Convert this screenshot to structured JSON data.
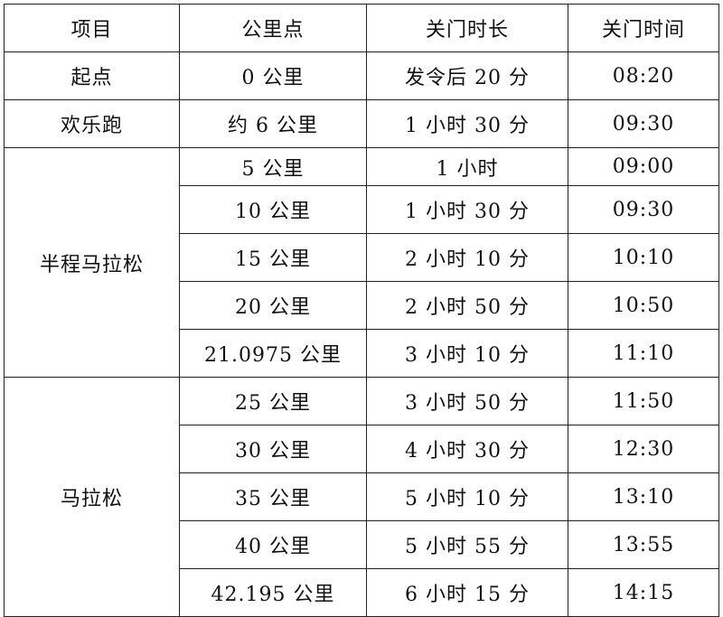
{
  "headers": [
    "项目",
    "公里点",
    "关门时长",
    "关门时间"
  ],
  "groups": [
    {
      "label": "起点",
      "rows": [
        {
          "km": "0 公里",
          "duration": "发令后 20 分",
          "time": "08:20"
        }
      ]
    },
    {
      "label": "欢乐跑",
      "rows": [
        {
          "km": "约 6 公里",
          "duration": "1 小时 30 分",
          "time": "09:30"
        }
      ]
    },
    {
      "label": "半程马拉松",
      "rows": [
        {
          "km": "5 公里",
          "duration": "1 小时",
          "time": "09:00"
        },
        {
          "km": "10 公里",
          "duration": "1 小时 30 分",
          "time": "09:30"
        },
        {
          "km": "15 公里",
          "duration": "2 小时 10 分",
          "time": "10:10"
        },
        {
          "km": "20 公里",
          "duration": "2 小时 50 分",
          "time": "10:50"
        },
        {
          "km": "21.0975 公里",
          "duration": "3 小时 10 分",
          "time": "11:10"
        }
      ]
    },
    {
      "label": "马拉松",
      "rows": [
        {
          "km": "25 公里",
          "duration": "3 小时 50 分",
          "time": "11:50"
        },
        {
          "km": "30 公里",
          "duration": "4 小时 30 分",
          "time": "12:30"
        },
        {
          "km": "35 公里",
          "duration": "5 小时 10 分",
          "time": "13:10"
        },
        {
          "km": "40 公里",
          "duration": "5 小时 55 分",
          "time": "13:55"
        },
        {
          "km": "42.195 公里",
          "duration": "6 小时 15 分",
          "time": "14:15"
        }
      ]
    }
  ]
}
